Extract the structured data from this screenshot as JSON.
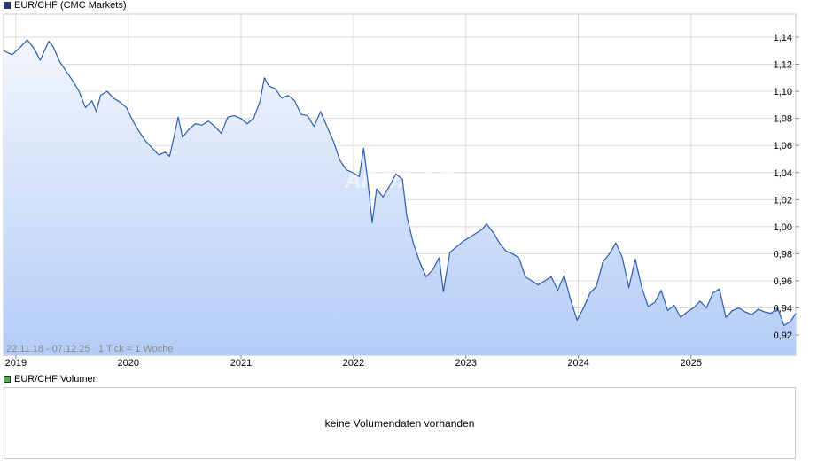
{
  "legend": {
    "main_label": "EUR/CHF (CMC Markets)",
    "main_color": "#1f3f8f",
    "volume_label": "EUR/CHF Volumen",
    "volume_color": "#4caf50"
  },
  "range_label": "22.11.18 - 07.12.25",
  "tick_info": "1 Tick = 1 Woche",
  "watermark": "ARIVA.DE",
  "volume_panel": {
    "message": "keine Volumendaten vorhanden"
  },
  "colors": {
    "line": "#2a5db0",
    "fill_top": "#f3f6fd",
    "fill_bottom": "#b4ccf6",
    "grid": "#d9d9d9"
  },
  "chart_data": {
    "type": "area",
    "title": "EUR/CHF (CMC Markets)",
    "xlabel": "",
    "ylabel": "",
    "x_ticks": [
      "2019",
      "2020",
      "2021",
      "2022",
      "2023",
      "2024",
      "2025"
    ],
    "y_ticks": [
      "1,14",
      "1,12",
      "1,10",
      "1,08",
      "1,06",
      "1,04",
      "1,02",
      "1,00",
      "0,98",
      "0,96",
      "0,94",
      "0,92"
    ],
    "ylim": [
      0.905,
      1.157
    ],
    "xlim": [
      "2018-11-22",
      "2025-12-07"
    ],
    "grid": true,
    "series": [
      {
        "name": "EUR/CHF (CMC Markets)",
        "points": [
          [
            "2018-11-22",
            1.13
          ],
          [
            "2018-12-20",
            1.127
          ],
          [
            "2019-01-17",
            1.133
          ],
          [
            "2019-02-07",
            1.138
          ],
          [
            "2019-02-28",
            1.132
          ],
          [
            "2019-03-21",
            1.123
          ],
          [
            "2019-04-18",
            1.137
          ],
          [
            "2019-05-02",
            1.133
          ],
          [
            "2019-05-23",
            1.122
          ],
          [
            "2019-06-13",
            1.115
          ],
          [
            "2019-07-04",
            1.108
          ],
          [
            "2019-07-25",
            1.1
          ],
          [
            "2019-08-15",
            1.088
          ],
          [
            "2019-09-05",
            1.093
          ],
          [
            "2019-09-19",
            1.085
          ],
          [
            "2019-10-03",
            1.097
          ],
          [
            "2019-10-24",
            1.1
          ],
          [
            "2019-11-14",
            1.095
          ],
          [
            "2019-12-05",
            1.092
          ],
          [
            "2019-12-26",
            1.088
          ],
          [
            "2020-01-16",
            1.078
          ],
          [
            "2020-02-06",
            1.07
          ],
          [
            "2020-02-27",
            1.063
          ],
          [
            "2020-03-19",
            1.058
          ],
          [
            "2020-04-09",
            1.053
          ],
          [
            "2020-04-30",
            1.055
          ],
          [
            "2020-05-14",
            1.052
          ],
          [
            "2020-05-28",
            1.066
          ],
          [
            "2020-06-11",
            1.081
          ],
          [
            "2020-06-25",
            1.066
          ],
          [
            "2020-07-16",
            1.072
          ],
          [
            "2020-08-06",
            1.076
          ],
          [
            "2020-08-27",
            1.075
          ],
          [
            "2020-09-17",
            1.078
          ],
          [
            "2020-10-08",
            1.074
          ],
          [
            "2020-10-29",
            1.069
          ],
          [
            "2020-11-19",
            1.081
          ],
          [
            "2020-12-10",
            1.082
          ],
          [
            "2020-12-31",
            1.08
          ],
          [
            "2021-01-21",
            1.076
          ],
          [
            "2021-02-11",
            1.08
          ],
          [
            "2021-03-04",
            1.093
          ],
          [
            "2021-03-18",
            1.11
          ],
          [
            "2021-04-01",
            1.104
          ],
          [
            "2021-04-22",
            1.102
          ],
          [
            "2021-05-13",
            1.095
          ],
          [
            "2021-06-03",
            1.097
          ],
          [
            "2021-06-24",
            1.093
          ],
          [
            "2021-07-15",
            1.083
          ],
          [
            "2021-08-05",
            1.082
          ],
          [
            "2021-08-26",
            1.074
          ],
          [
            "2021-09-16",
            1.085
          ],
          [
            "2021-10-07",
            1.074
          ],
          [
            "2021-10-28",
            1.063
          ],
          [
            "2021-11-18",
            1.049
          ],
          [
            "2021-12-09",
            1.042
          ],
          [
            "2021-12-30",
            1.04
          ],
          [
            "2022-01-20",
            1.037
          ],
          [
            "2022-02-03",
            1.058
          ],
          [
            "2022-02-17",
            1.033
          ],
          [
            "2022-03-03",
            1.003
          ],
          [
            "2022-03-17",
            1.028
          ],
          [
            "2022-04-07",
            1.022
          ],
          [
            "2022-04-28",
            1.03
          ],
          [
            "2022-05-19",
            1.039
          ],
          [
            "2022-06-09",
            1.035
          ],
          [
            "2022-06-23",
            1.008
          ],
          [
            "2022-07-14",
            0.988
          ],
          [
            "2022-08-04",
            0.974
          ],
          [
            "2022-08-25",
            0.963
          ],
          [
            "2022-09-15",
            0.968
          ],
          [
            "2022-10-06",
            0.977
          ],
          [
            "2022-10-20",
            0.952
          ],
          [
            "2022-11-10",
            0.981
          ],
          [
            "2022-12-01",
            0.985
          ],
          [
            "2022-12-22",
            0.989
          ],
          [
            "2023-01-12",
            0.992
          ],
          [
            "2023-02-02",
            0.995
          ],
          [
            "2023-02-23",
            0.998
          ],
          [
            "2023-03-09",
            1.002
          ],
          [
            "2023-03-30",
            0.996
          ],
          [
            "2023-04-20",
            0.988
          ],
          [
            "2023-05-11",
            0.982
          ],
          [
            "2023-06-01",
            0.98
          ],
          [
            "2023-06-22",
            0.977
          ],
          [
            "2023-07-13",
            0.963
          ],
          [
            "2023-08-03",
            0.96
          ],
          [
            "2023-08-24",
            0.957
          ],
          [
            "2023-09-14",
            0.96
          ],
          [
            "2023-10-05",
            0.963
          ],
          [
            "2023-10-26",
            0.953
          ],
          [
            "2023-11-16",
            0.964
          ],
          [
            "2023-12-07",
            0.946
          ],
          [
            "2023-12-28",
            0.931
          ],
          [
            "2024-01-18",
            0.94
          ],
          [
            "2024-02-08",
            0.951
          ],
          [
            "2024-02-29",
            0.956
          ],
          [
            "2024-03-21",
            0.974
          ],
          [
            "2024-04-11",
            0.98
          ],
          [
            "2024-05-02",
            0.988
          ],
          [
            "2024-05-23",
            0.977
          ],
          [
            "2024-06-13",
            0.955
          ],
          [
            "2024-07-04",
            0.976
          ],
          [
            "2024-07-25",
            0.955
          ],
          [
            "2024-08-15",
            0.941
          ],
          [
            "2024-09-05",
            0.944
          ],
          [
            "2024-09-26",
            0.953
          ],
          [
            "2024-10-17",
            0.938
          ],
          [
            "2024-11-07",
            0.942
          ],
          [
            "2024-11-28",
            0.933
          ],
          [
            "2024-12-19",
            0.937
          ],
          [
            "2025-01-09",
            0.94
          ],
          [
            "2025-01-30",
            0.945
          ],
          [
            "2025-02-20",
            0.94
          ],
          [
            "2025-03-13",
            0.951
          ],
          [
            "2025-04-03",
            0.954
          ],
          [
            "2025-04-24",
            0.933
          ],
          [
            "2025-05-15",
            0.938
          ],
          [
            "2025-06-05",
            0.94
          ],
          [
            "2025-06-26",
            0.937
          ],
          [
            "2025-07-17",
            0.935
          ],
          [
            "2025-08-07",
            0.939
          ],
          [
            "2025-08-28",
            0.937
          ],
          [
            "2025-09-18",
            0.936
          ],
          [
            "2025-10-09",
            0.94
          ],
          [
            "2025-10-30",
            0.927
          ],
          [
            "2025-11-20",
            0.93
          ],
          [
            "2025-12-07",
            0.936
          ]
        ]
      }
    ]
  }
}
